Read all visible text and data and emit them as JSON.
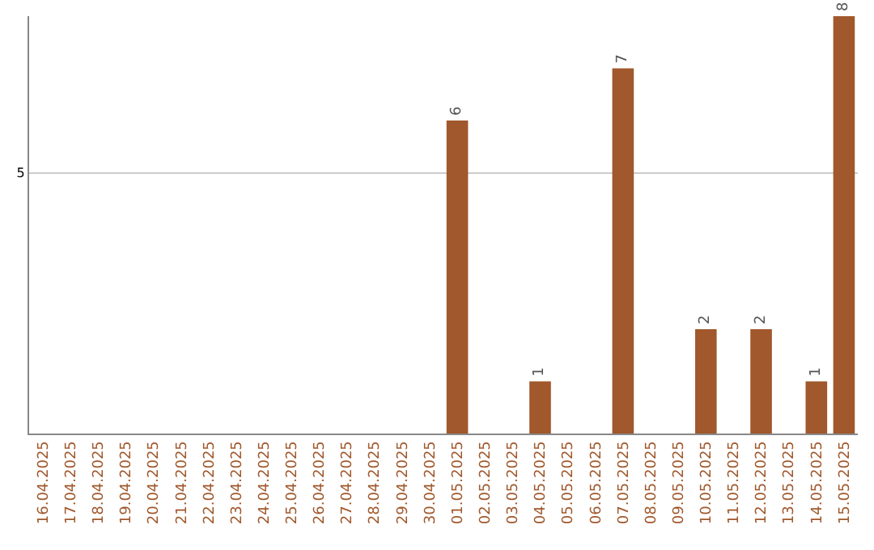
{
  "chart_data": {
    "type": "bar",
    "categories": [
      "16.04.2025",
      "17.04.2025",
      "18.04.2025",
      "19.04.2025",
      "20.04.2025",
      "21.04.2025",
      "22.04.2025",
      "23.04.2025",
      "24.04.2025",
      "25.04.2025",
      "26.04.2025",
      "27.04.2025",
      "28.04.2025",
      "29.04.2025",
      "30.04.2025",
      "01.05.2025",
      "02.05.2025",
      "03.05.2025",
      "04.05.2025",
      "05.05.2025",
      "06.05.2025",
      "07.05.2025",
      "08.05.2025",
      "09.05.2025",
      "10.05.2025",
      "11.05.2025",
      "12.05.2025",
      "13.05.2025",
      "14.05.2025",
      "15.05.2025"
    ],
    "values": [
      null,
      null,
      null,
      null,
      null,
      null,
      null,
      null,
      null,
      null,
      null,
      null,
      null,
      null,
      null,
      6,
      null,
      null,
      1,
      null,
      null,
      7,
      null,
      null,
      2,
      null,
      2,
      null,
      1,
      8
    ],
    "color": "#a0582c",
    "ylim": [
      0,
      8
    ],
    "yticks": [
      5
    ],
    "grid": "y",
    "data_labels": true,
    "legend": false
  }
}
